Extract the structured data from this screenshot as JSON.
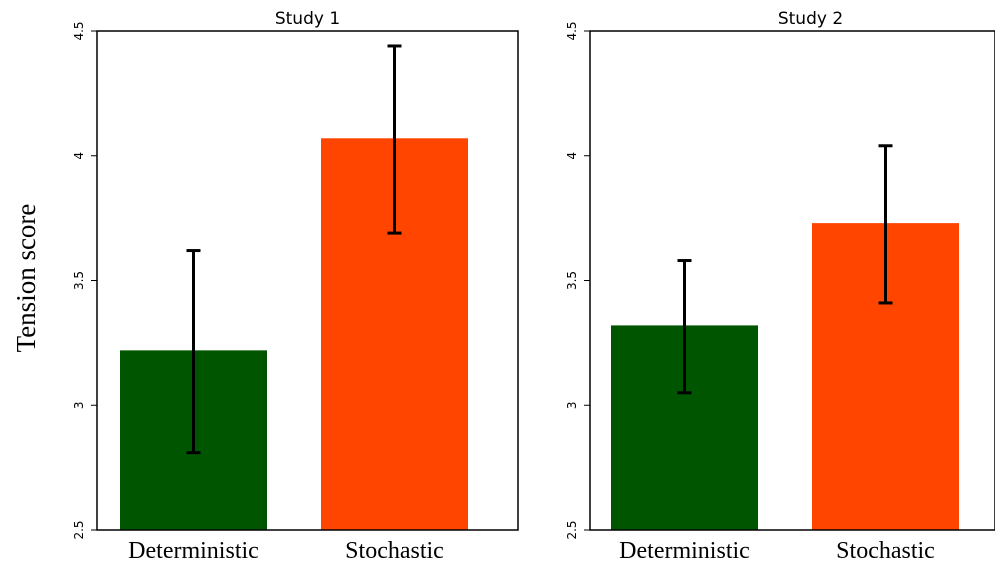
{
  "chart_data": {
    "type": "bar",
    "ylabel": "Tension score",
    "ylim": [
      2.5,
      4.5
    ],
    "yticks": [
      2.5,
      3,
      3.5,
      4,
      4.5
    ],
    "ytick_labels": [
      "2.5",
      "3",
      "3.5",
      "4",
      "4.5"
    ],
    "grid": false,
    "colors": {
      "Deterministic": "#005500",
      "Stochastic": "#ff4500",
      "error_bar": "#000000"
    },
    "panels": [
      {
        "title": "Study 1",
        "categories": [
          "Deterministic",
          "Stochastic"
        ],
        "values": [
          3.22,
          4.07
        ],
        "error_low": [
          2.81,
          3.69
        ],
        "error_high": [
          3.62,
          4.44
        ]
      },
      {
        "title": "Study 2",
        "categories": [
          "Deterministic",
          "Stochastic"
        ],
        "values": [
          3.32,
          3.73
        ],
        "error_low": [
          3.05,
          3.41
        ],
        "error_high": [
          3.58,
          4.04
        ]
      }
    ]
  }
}
